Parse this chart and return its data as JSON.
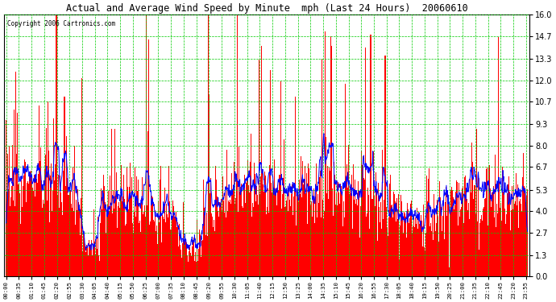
{
  "title": "Actual and Average Wind Speed by Minute  mph (Last 24 Hours)  20060610",
  "copyright": "Copyright 2006 Cartronics.com",
  "background_color": "#ffffff",
  "plot_background": "#ffffff",
  "grid_color": "#00cc00",
  "bar_color": "#ff0000",
  "line_color": "#0000ff",
  "yticks": [
    0.0,
    1.3,
    2.7,
    4.0,
    5.3,
    6.7,
    8.0,
    9.3,
    10.7,
    12.0,
    13.3,
    14.7,
    16.0
  ],
  "ylim": [
    0.0,
    16.0
  ],
  "n_minutes": 1440,
  "seed": 12345,
  "tick_step": 35
}
